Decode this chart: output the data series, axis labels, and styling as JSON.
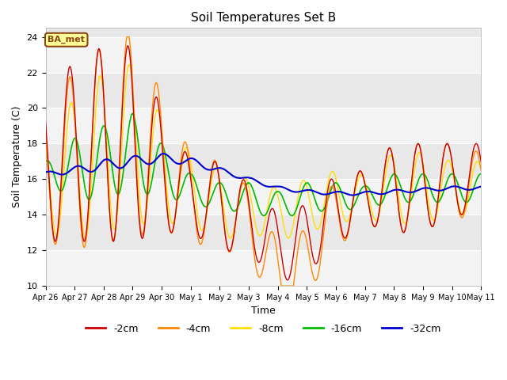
{
  "title": "Soil Temperatures Set B",
  "xlabel": "Time",
  "ylabel": "Soil Temperature (C)",
  "ylim": [
    10,
    24.5
  ],
  "xlim": [
    0,
    360
  ],
  "fig_bg_color": "#ffffff",
  "plot_bg_color": "#e8e8e8",
  "annotation_text": "BA_met",
  "annotation_bg": "#ffff99",
  "annotation_border": "#8b4513",
  "series_colors": {
    "-2cm": "#cc0000",
    "-4cm": "#ff8800",
    "-8cm": "#ffdd00",
    "-16cm": "#00bb00",
    "-32cm": "#0000cc"
  },
  "xtick_labels": [
    "Apr 26",
    "Apr 27",
    "Apr 28",
    "Apr 29",
    "Apr 30",
    "May 1",
    "May 2",
    "May 3",
    "May 4",
    "May 5",
    "May 6",
    "May 7",
    "May 8",
    "May 9",
    "May 10",
    "May 11"
  ],
  "ytick_vals": [
    10,
    12,
    14,
    16,
    18,
    20,
    22,
    24
  ],
  "legend_labels": [
    "-2cm",
    "-4cm",
    "-8cm",
    "-16cm",
    "-32cm"
  ],
  "legend_colors": [
    "#cc0000",
    "#ff8800",
    "#ffdd00",
    "#00bb00",
    "#0000cc"
  ]
}
